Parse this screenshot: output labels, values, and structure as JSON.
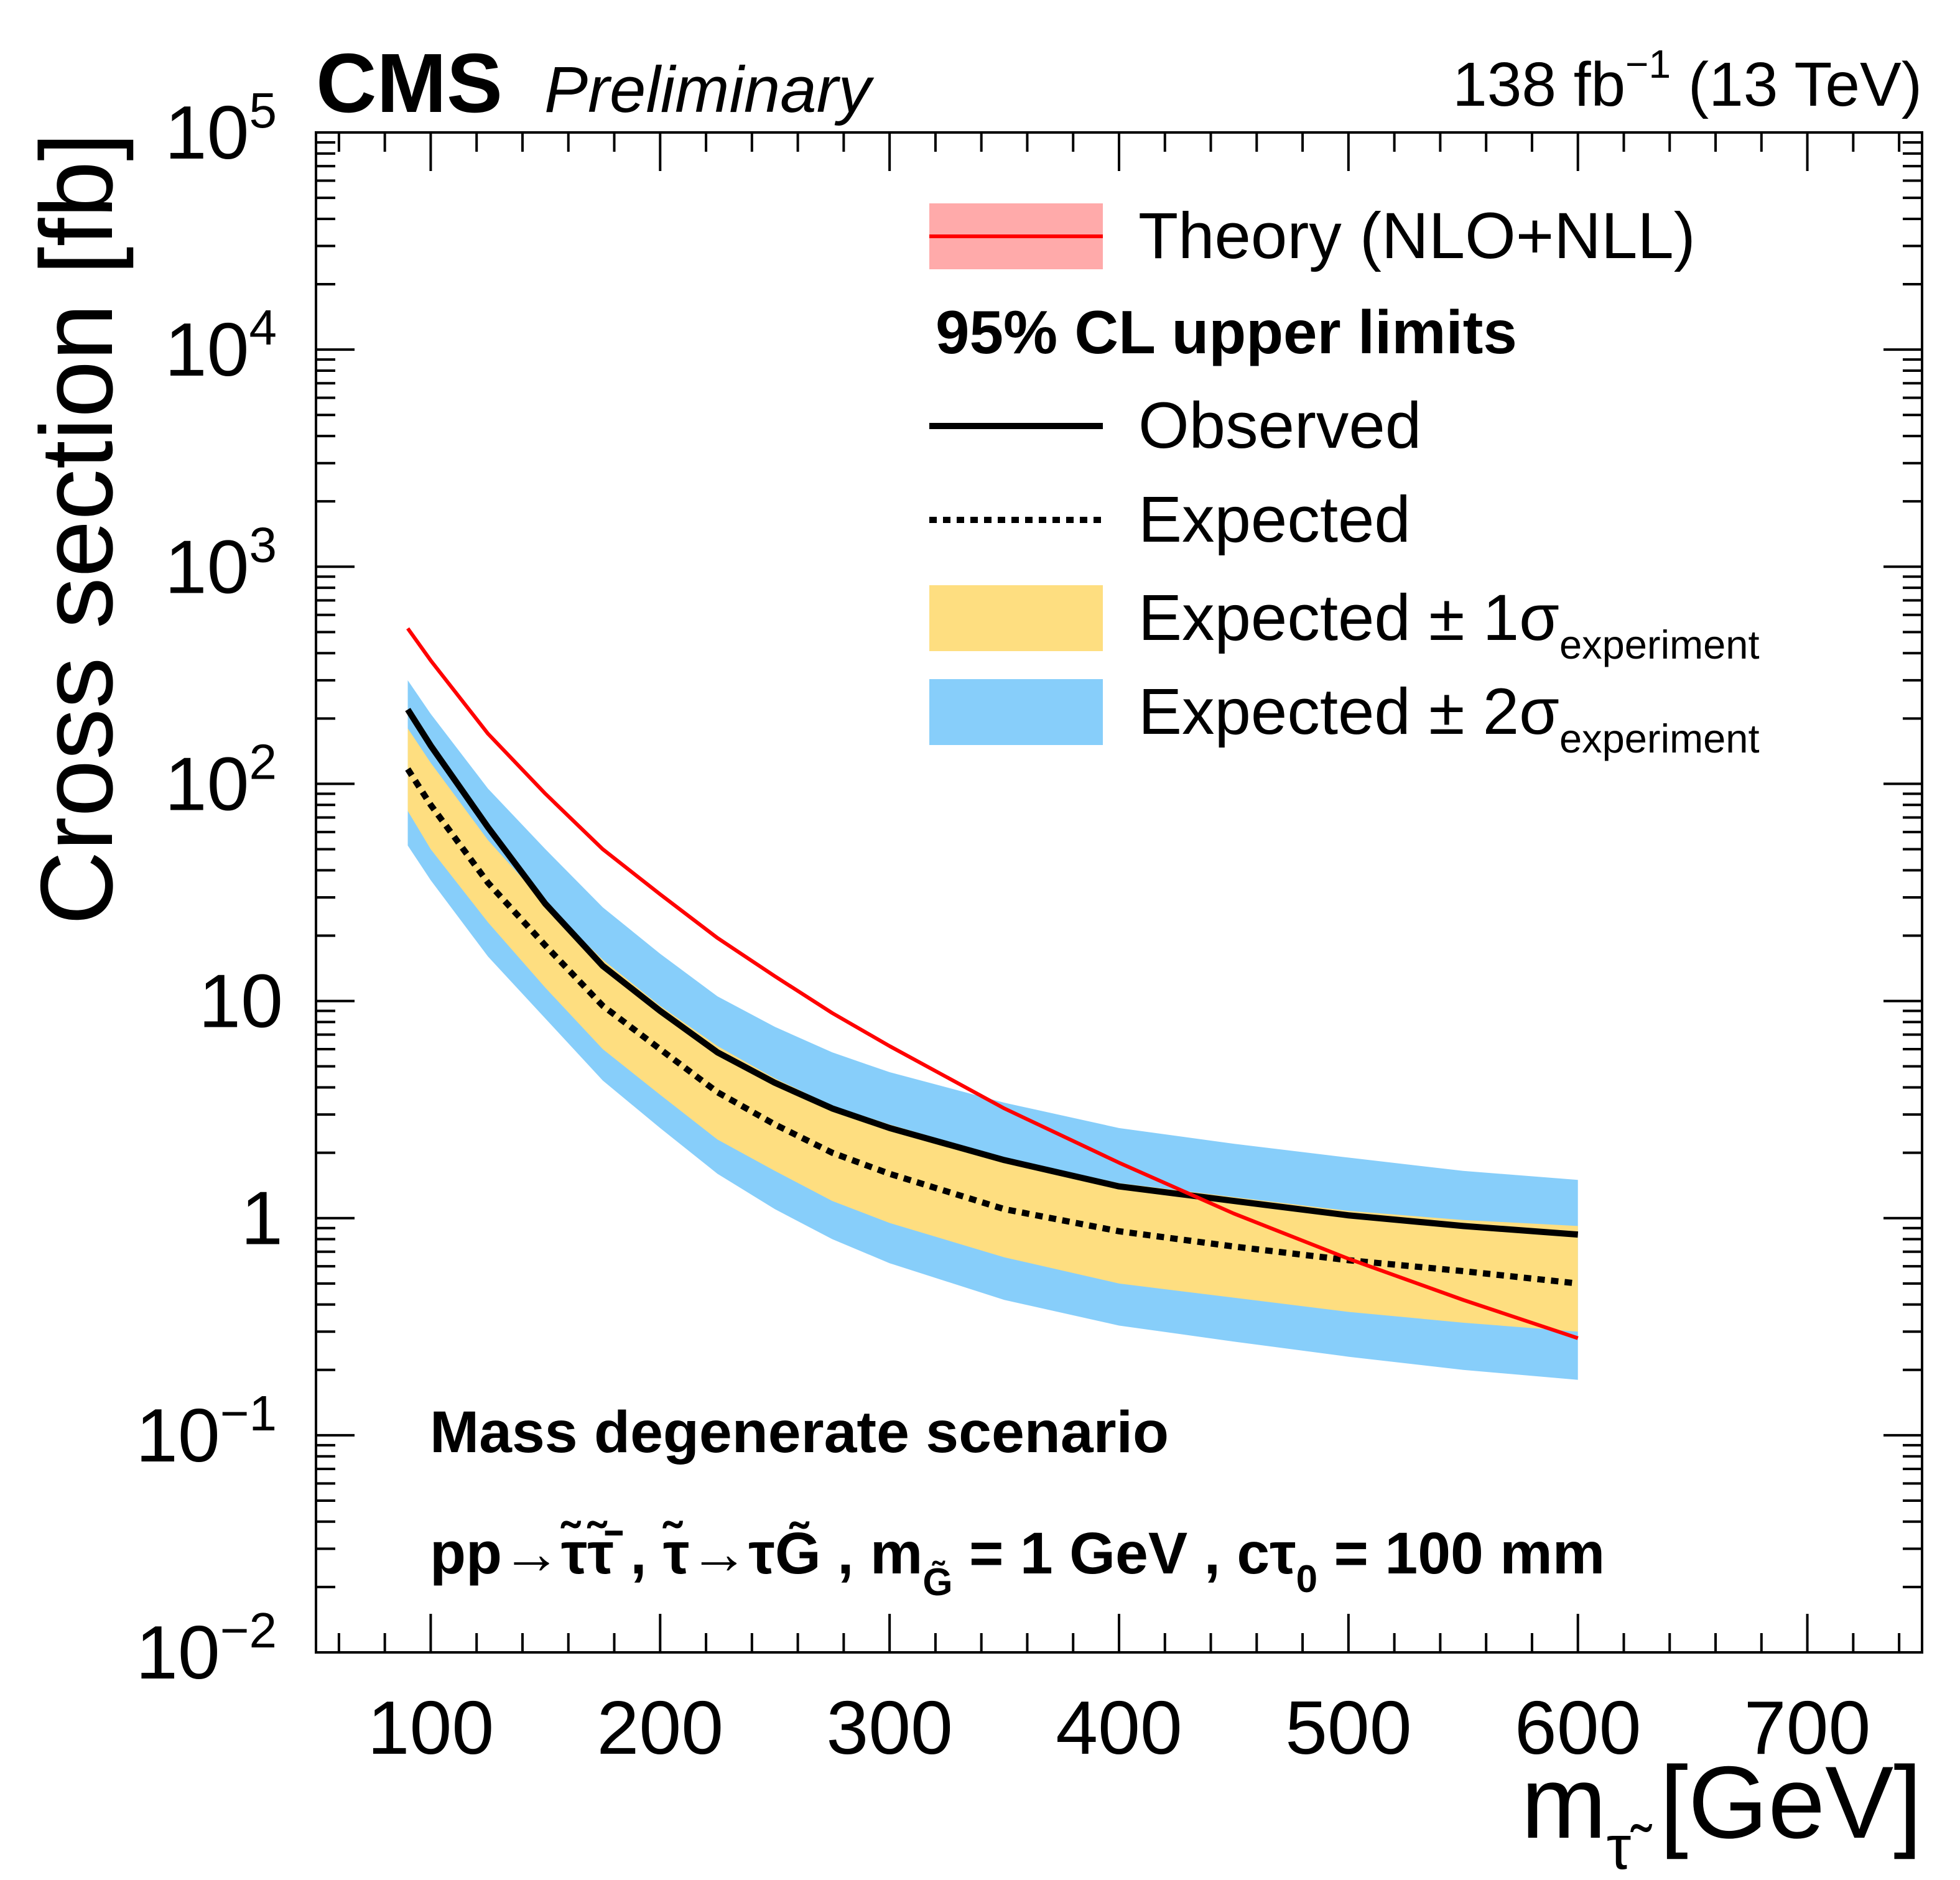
{
  "header": {
    "experiment": "CMS",
    "status": "Preliminary",
    "lumi": "138 fb",
    "lumi_exp": "−1",
    "energy": " (13 TeV)"
  },
  "chart_data": {
    "type": "line",
    "ylabel": "Cross section [fb]",
    "xlabel": {
      "main": "m",
      "sub": "τ̃",
      "unit": " [GeV]"
    },
    "xlim": [
      50,
      750
    ],
    "ylim": [
      0.01,
      100000
    ],
    "yscale": "log",
    "xticks": [
      100,
      200,
      300,
      400,
      500,
      600,
      700
    ],
    "xtick_labels": [
      "100",
      "200",
      "300",
      "400",
      "500",
      "600",
      "700"
    ],
    "yticks": [
      {
        "value": 100000,
        "base": "10",
        "exp": "5"
      },
      {
        "value": 10000,
        "base": "10",
        "exp": "4"
      },
      {
        "value": 1000,
        "base": "10",
        "exp": "3"
      },
      {
        "value": 100,
        "base": "10",
        "exp": "2"
      },
      {
        "value": 10,
        "base": "10",
        "exp": ""
      },
      {
        "value": 1,
        "base": "1",
        "exp": ""
      },
      {
        "value": 0.1,
        "base": "10",
        "exp": "−1"
      },
      {
        "value": 0.01,
        "base": "10",
        "exp": "−2"
      }
    ],
    "grid": false,
    "legend_placement": "top-right",
    "x": [
      90,
      100,
      125,
      150,
      175,
      200,
      225,
      250,
      275,
      300,
      350,
      400,
      450,
      500,
      550,
      600
    ],
    "series": [
      {
        "name": "Theory (NLO+NLL)",
        "color": "#ff0000",
        "band_color": "#ffaaaa",
        "values": [
          520,
          370,
          170,
          90,
          50,
          31,
          19.5,
          13,
          8.8,
          6.2,
          3.2,
          1.8,
          1.05,
          0.65,
          0.42,
          0.28
        ]
      },
      {
        "name": "Observed",
        "color": "#000000",
        "values": [
          220,
          150,
          63,
          28,
          14.5,
          9,
          5.8,
          4.2,
          3.2,
          2.6,
          1.85,
          1.4,
          1.2,
          1.03,
          0.92,
          0.84
        ]
      },
      {
        "name": "Expected",
        "color": "#000000",
        "style": "dotted",
        "values": [
          117,
          80,
          35,
          18,
          9.5,
          6,
          3.8,
          2.7,
          2.0,
          1.6,
          1.1,
          0.87,
          0.74,
          0.64,
          0.57,
          0.5
        ]
      }
    ],
    "bands": [
      {
        "name": "Expected ± 2σ",
        "sub": "experiment",
        "color": "#87cefa",
        "upper": [
          300,
          210,
          95,
          50,
          27,
          16.5,
          10.5,
          7.6,
          5.8,
          4.7,
          3.4,
          2.6,
          2.2,
          1.9,
          1.65,
          1.5
        ],
        "lower": [
          52,
          36,
          16,
          8.3,
          4.3,
          2.6,
          1.6,
          1.1,
          0.8,
          0.62,
          0.42,
          0.32,
          0.27,
          0.23,
          0.2,
          0.18
        ]
      },
      {
        "name": "Expected ± 1σ",
        "sub": "experiment",
        "color": "#fede80",
        "upper": [
          180,
          125,
          55,
          28,
          15.5,
          9.5,
          6.2,
          4.4,
          3.3,
          2.7,
          1.9,
          1.45,
          1.25,
          1.08,
          0.98,
          0.92
        ],
        "lower": [
          75,
          50,
          23,
          11.5,
          6,
          3.7,
          2.3,
          1.65,
          1.2,
          0.95,
          0.66,
          0.5,
          0.43,
          0.37,
          0.33,
          0.3
        ]
      }
    ],
    "legend_header": "95% CL upper limits",
    "annotations": {
      "scenario": "Mass degenerate scenario",
      "process_a": "pp→τ̃τ̃̄ , τ̃→τG̃ , m",
      "process_sub1": "G̃",
      "process_b": " = 1 GeV , cτ",
      "process_sub2": "0",
      "process_c": " = 100 mm"
    }
  }
}
